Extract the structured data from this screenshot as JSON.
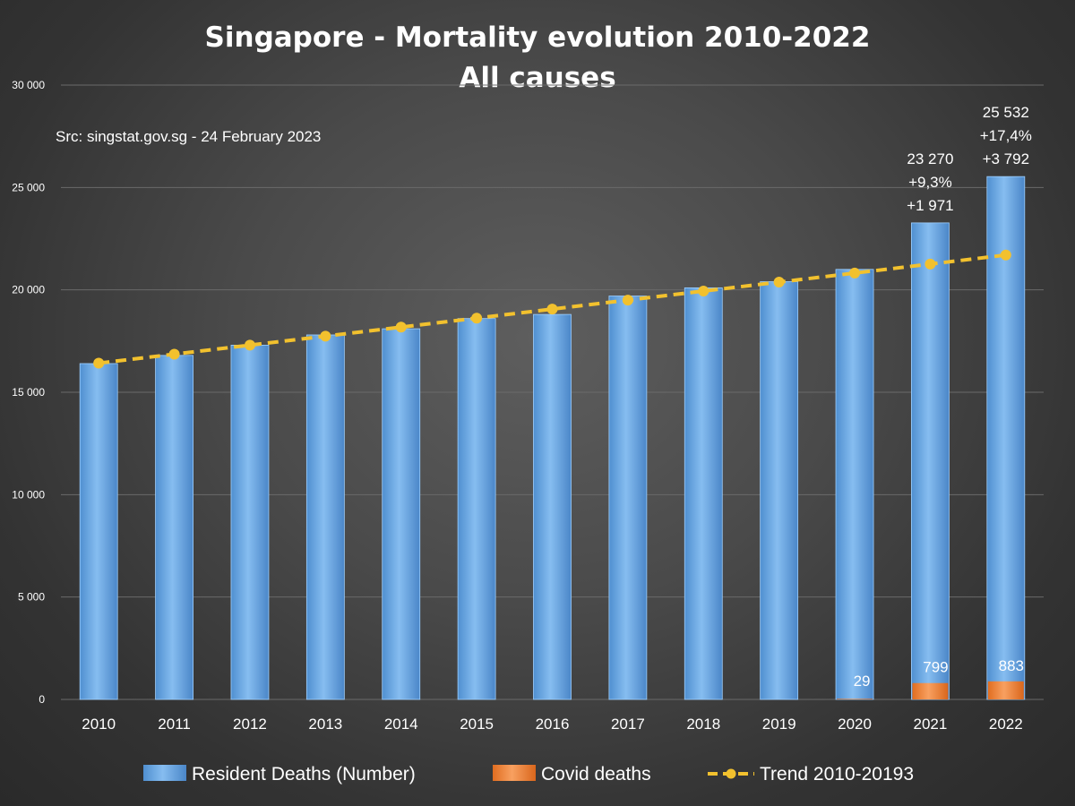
{
  "chart_data": {
    "type": "bar",
    "title_lines": [
      "Singapore - Mortality evolution 2010-2022",
      "All causes"
    ],
    "source_note": "Src: singstat.gov.sg - 24 February 2023",
    "categories": [
      "2010",
      "2011",
      "2012",
      "2013",
      "2014",
      "2015",
      "2016",
      "2017",
      "2018",
      "2019",
      "2020",
      "2021",
      "2022"
    ],
    "ylim": [
      0,
      30000
    ],
    "yticks": [
      0,
      5000,
      10000,
      15000,
      20000,
      25000,
      30000
    ],
    "ytick_labels": [
      "0",
      "5 000",
      "10 000",
      "15 000",
      "20 000",
      "25 000",
      "30 000"
    ],
    "grid": true,
    "legend_position": "bottom",
    "series": [
      {
        "name": "Resident Deaths (Number)",
        "kind": "bar",
        "color": "#5b9bd5",
        "values": [
          16400,
          16800,
          17300,
          17800,
          18100,
          18600,
          18800,
          19700,
          20100,
          20400,
          21000,
          23270,
          25532
        ]
      },
      {
        "name": "Covid deaths",
        "kind": "bar",
        "color": "#ed7d31",
        "values": [
          0,
          0,
          0,
          0,
          0,
          0,
          0,
          0,
          0,
          0,
          29,
          799,
          883
        ]
      },
      {
        "name": "Trend 2010-20193",
        "kind": "line",
        "style": "dashed-dots",
        "color": "#f2c12e",
        "values": [
          16420,
          16860,
          17300,
          17740,
          18180,
          18620,
          19060,
          19500,
          19940,
          20380,
          20820,
          21260,
          21700
        ]
      }
    ],
    "annotations": [
      {
        "category": "2021",
        "lines": [
          "23 270",
          "+9,3%",
          "+1 971"
        ]
      },
      {
        "category": "2022",
        "lines": [
          "25 532",
          "+17,4%",
          "+3 792"
        ]
      }
    ],
    "covid_labels": [
      {
        "category": "2020",
        "text": "29"
      },
      {
        "category": "2021",
        "text": "799"
      },
      {
        "category": "2022",
        "text": "883"
      }
    ]
  }
}
